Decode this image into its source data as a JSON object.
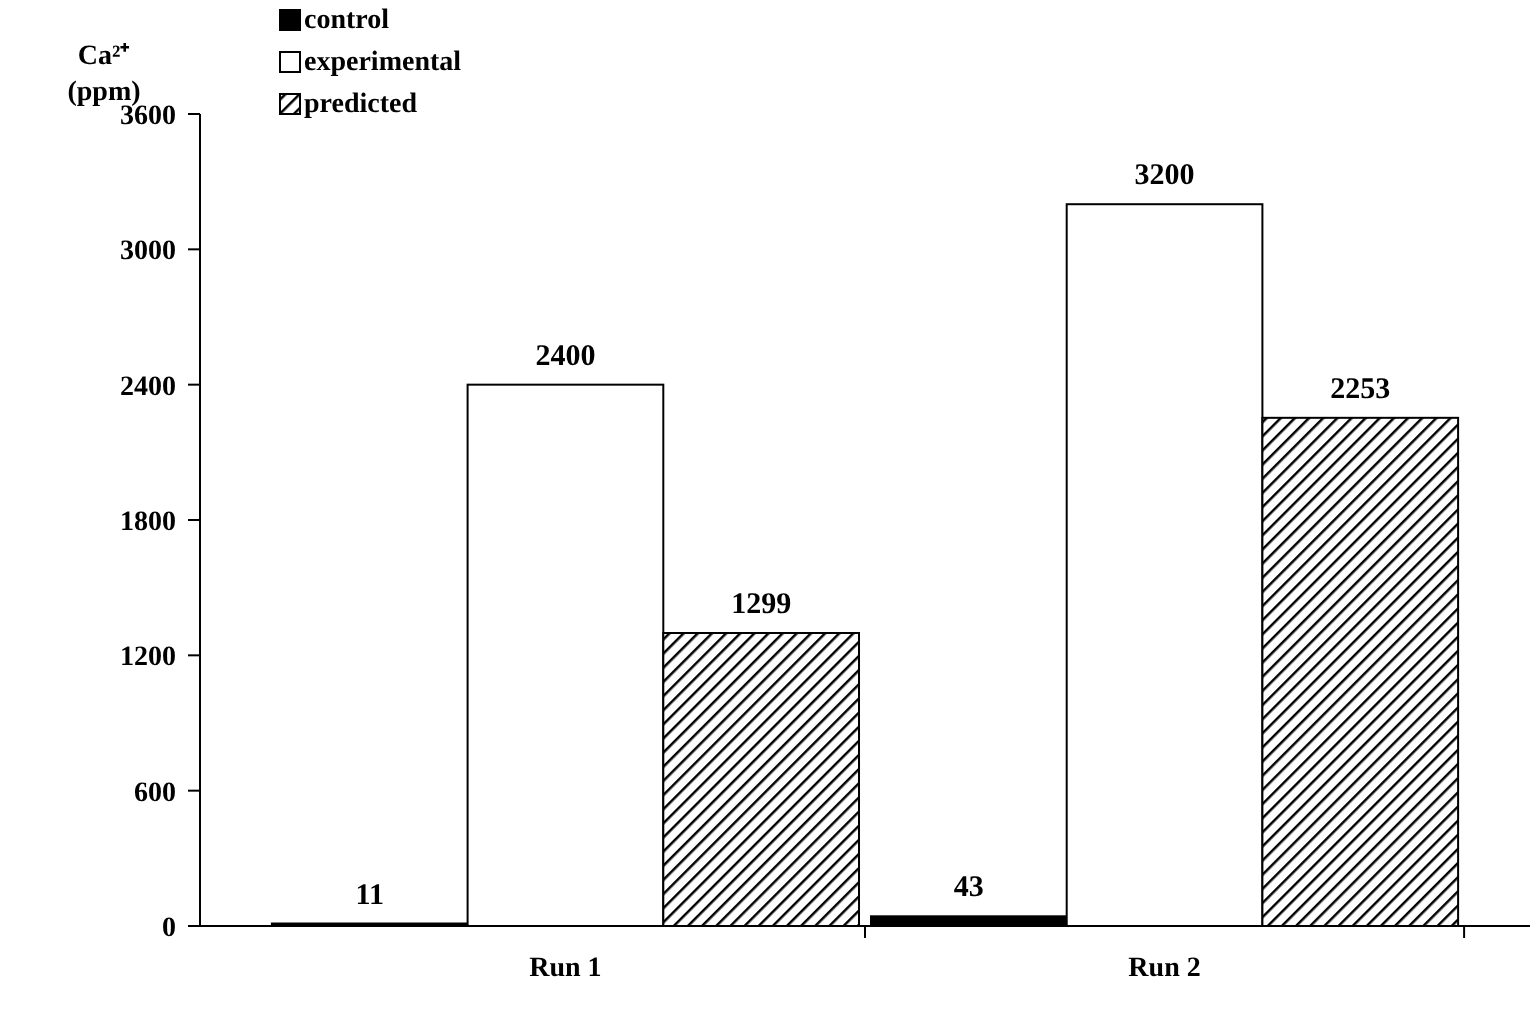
{
  "chart_data": {
    "type": "bar",
    "ylabel": "Ca²⁺ (ppm)",
    "categories": [
      "Run 1",
      "Run 2"
    ],
    "series": [
      {
        "name": "control",
        "color": "#000000",
        "values": [
          11,
          43
        ]
      },
      {
        "name": "experimental",
        "color": "#ffffff",
        "values": [
          2400,
          3200
        ]
      },
      {
        "name": "predicted",
        "color": "#000000",
        "values": [
          1299,
          2253
        ]
      }
    ],
    "ylim": [
      0,
      3600
    ],
    "yticks": [
      0,
      600,
      1200,
      1800,
      2400,
      3000,
      3600
    ],
    "data_labels": true,
    "legend": "top left",
    "grid": false
  }
}
